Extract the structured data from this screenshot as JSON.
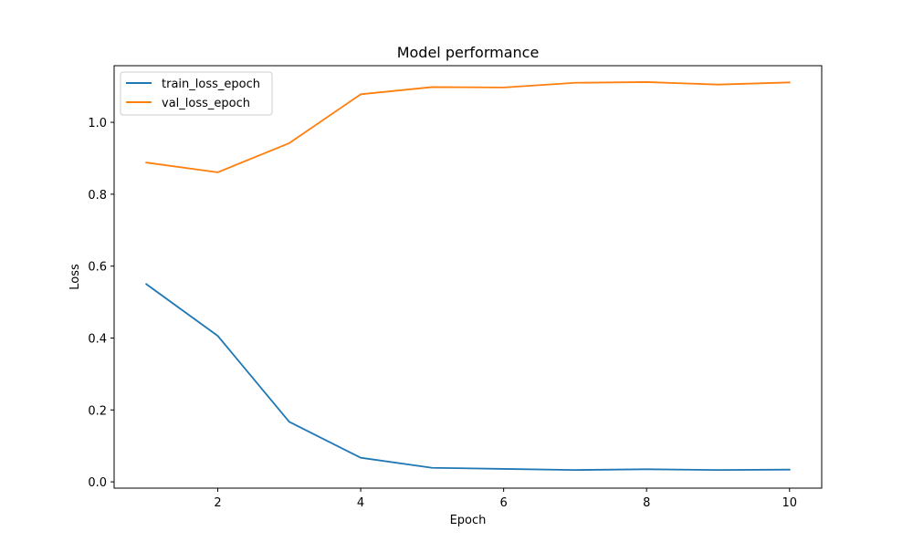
{
  "chart_data": {
    "type": "line",
    "title": "Model performance",
    "xlabel": "Epoch",
    "ylabel": "Loss",
    "x": [
      1,
      2,
      3,
      4,
      5,
      6,
      7,
      8,
      9,
      10
    ],
    "xlim": [
      0.55,
      10.45
    ],
    "ylim": [
      -0.0175,
      1.1575
    ],
    "xticks": [
      2,
      4,
      6,
      8,
      10
    ],
    "yticks": [
      0.0,
      0.2,
      0.4,
      0.6,
      0.8,
      1.0
    ],
    "xtick_labels": [
      "2",
      "4",
      "6",
      "8",
      "10"
    ],
    "ytick_labels": [
      "0.0",
      "0.2",
      "0.4",
      "0.6",
      "0.8",
      "1.0"
    ],
    "grid": false,
    "legend_position": "top-left",
    "series": [
      {
        "name": "train_loss_epoch",
        "color": "#1f77b4",
        "values": [
          0.55,
          0.406,
          0.167,
          0.067,
          0.039,
          0.036,
          0.033,
          0.035,
          0.033,
          0.034
        ]
      },
      {
        "name": "val_loss_epoch",
        "color": "#ff7f0e",
        "values": [
          0.888,
          0.861,
          0.942,
          1.078,
          1.098,
          1.097,
          1.11,
          1.112,
          1.105,
          1.111
        ]
      }
    ]
  }
}
